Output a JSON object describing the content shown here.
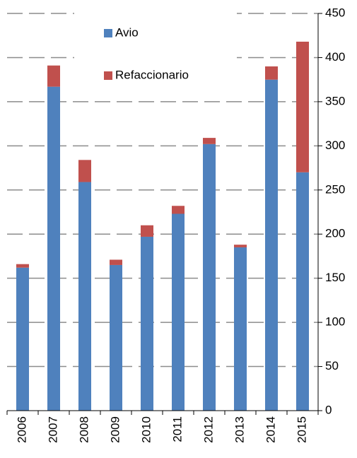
{
  "chart_data": {
    "type": "stacked-bar",
    "categories": [
      "2006",
      "2007",
      "2008",
      "2009",
      "2010",
      "2011",
      "2012",
      "2013",
      "2014",
      "2015"
    ],
    "series": [
      {
        "name": "Avio",
        "color": "#4f81bd",
        "values": [
          162,
          367,
          259,
          165,
          197,
          223,
          302,
          185,
          375,
          270
        ]
      },
      {
        "name": "Refaccionario",
        "color": "#c0504d",
        "values": [
          4,
          24,
          25,
          6,
          13,
          9,
          7,
          3,
          15,
          148
        ]
      }
    ],
    "ylim": [
      0,
      450
    ],
    "yticks": [
      0,
      50,
      100,
      150,
      200,
      250,
      300,
      350,
      400,
      450
    ],
    "y_axis_side": "right",
    "grid": true,
    "legend": "upper center"
  }
}
